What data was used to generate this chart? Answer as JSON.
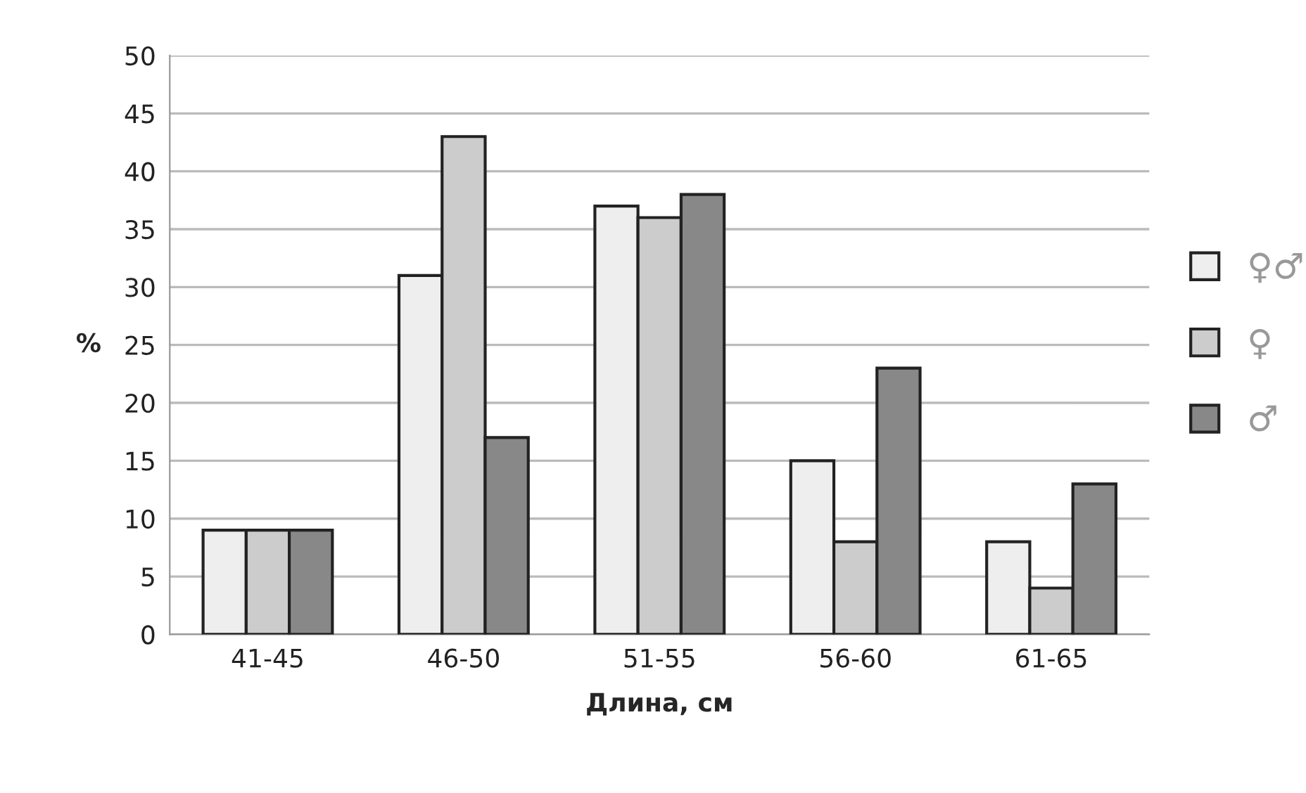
{
  "chart_data": {
    "type": "bar",
    "xlabel": "Длина, см",
    "ylabel": "%",
    "categories": [
      "41-45",
      "46-50",
      "51-55",
      "56-60",
      "61-65"
    ],
    "series": [
      {
        "name": "♀♂",
        "color": "#eeeeee",
        "values": [
          9,
          31,
          37,
          15,
          8
        ]
      },
      {
        "name": "♀",
        "color": "#cccccc",
        "values": [
          9,
          43,
          36,
          8,
          4
        ]
      },
      {
        "name": "♂",
        "color": "#888888",
        "values": [
          9,
          17,
          38,
          23,
          13
        ]
      }
    ],
    "ylim": [
      0,
      50
    ],
    "yticks": [
      0,
      5,
      10,
      15,
      20,
      25,
      30,
      35,
      40,
      45,
      50
    ],
    "grid": "y",
    "legend": "right"
  }
}
